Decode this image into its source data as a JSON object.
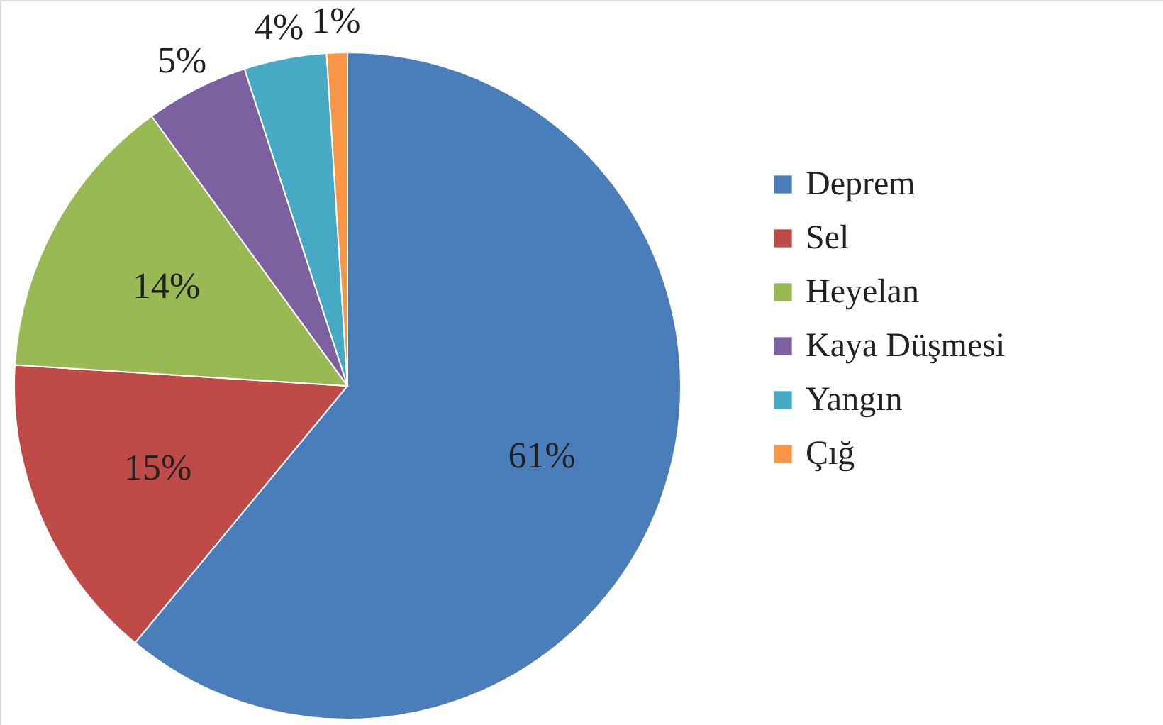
{
  "chart_data": {
    "type": "pie",
    "categories": [
      "Deprem",
      "Sel",
      "Heyelan",
      "Kaya Düşmesi",
      "Yangın",
      "Çığ"
    ],
    "values": [
      61,
      15,
      14,
      5,
      4,
      1
    ],
    "colors": [
      "#4a7ebb",
      "#be4b48",
      "#98b954",
      "#7d60a0",
      "#46aac5",
      "#f79646"
    ],
    "value_labels": [
      "61%",
      "15%",
      "14%",
      "5%",
      "4%",
      "1%"
    ],
    "legend": "right"
  }
}
